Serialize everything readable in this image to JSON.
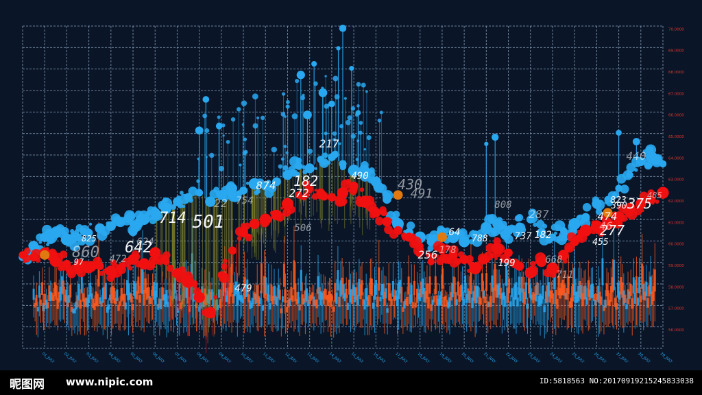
{
  "chart_data": {
    "type": "scatter",
    "title": "",
    "xlabel": "",
    "ylabel": "",
    "x_ticks": [
      "01_JULY",
      "02_JULY",
      "03_JULY",
      "04_JULY",
      "05_JULY",
      "06_JULY",
      "07_JULY",
      "08_JULY",
      "09_JULY",
      "10_JULY",
      "11_JULY",
      "12_JULY",
      "13_JULY",
      "14_JULY",
      "15_JULY",
      "16_JULY",
      "17_JULY",
      "18_JULY",
      "19_JULY",
      "20_JULY",
      "21_JULY",
      "22_JULY",
      "23_JULY",
      "24_JULY",
      "25_JULY",
      "26_JULY",
      "27_JULY",
      "28_JULY",
      "29_JULY"
    ],
    "y_ticks": [
      "70.0000",
      "69.0000",
      "68.0000",
      "67.0000",
      "66.0000",
      "65.0000",
      "64.0000",
      "63.0000",
      "62.0000",
      "61.0000",
      "60.0000",
      "59.0000",
      "58.0000",
      "57.0000",
      "56.0000"
    ],
    "ylim": [
      56,
      70.5
    ],
    "grid": true,
    "colors": {
      "blue": "#29a8f0",
      "red": "#f01010",
      "orange": "#ff5a1e",
      "olive": "#8a8a2a",
      "axis_label": "#e0352a",
      "tick_x": "#29a8f0",
      "grid": "#8fa4c0"
    },
    "series": [
      {
        "x": [
          0,
          0.5,
          1,
          1.5,
          2,
          2.5,
          3,
          3.5,
          4,
          4.5,
          5,
          5.5,
          6,
          6.5,
          7,
          7.5,
          8,
          8.5,
          9,
          9.5,
          10,
          10.5,
          11,
          11.5,
          12,
          12.5,
          13,
          13.5,
          14,
          14.5,
          15,
          15.5,
          16,
          16.5,
          17,
          17.5,
          18,
          18.5,
          19,
          19.5,
          20,
          20.5,
          21,
          21.5,
          22,
          22.5,
          23,
          23.5,
          24,
          24.5,
          25,
          25.5,
          26,
          26.5,
          27,
          27.5,
          28,
          28.5,
          29
        ],
        "values": [
          60.1,
          60.6,
          61.0,
          61.2,
          60.9,
          61.0,
          61.2,
          61.4,
          61.5,
          61.7,
          61.6,
          61.8,
          62.1,
          62.3,
          62.6,
          62.8,
          63.0,
          62.6,
          62.9,
          63.2,
          63.1,
          63.4,
          63.3,
          63.5,
          63.8,
          64.2,
          64.1,
          64.5,
          64.6,
          64.3,
          64.0,
          63.9,
          63.5,
          62.7,
          61.6,
          61.2,
          61.0,
          60.8,
          61.2,
          61.0,
          60.8,
          61.1,
          61.4,
          61.6,
          61.3,
          61.5,
          61.8,
          61.2,
          61.0,
          61.3,
          61.6,
          61.9,
          62.5,
          62.7,
          63.2,
          63.8,
          64.4,
          64.6,
          64.3
        ]
      },
      {
        "x": [
          0,
          0.5,
          1,
          1.5,
          2,
          2.5,
          3,
          3.5,
          4,
          4.5,
          5,
          5.5,
          6,
          6.5,
          7,
          7.5,
          8,
          8.5,
          9,
          9.5,
          10,
          10.5,
          11,
          11.5,
          12,
          12.5,
          13,
          13.5,
          14,
          14.5,
          15,
          15.5,
          16,
          16.5,
          17,
          17.5,
          18,
          18.5,
          19,
          19.5,
          20,
          20.5,
          21,
          21.5,
          22,
          22.5,
          23,
          23.5,
          24,
          24.5,
          25,
          25.5,
          26,
          26.5,
          27,
          27.5,
          28,
          28.5,
          29
        ],
        "values": [
          60.2,
          60.1,
          60.3,
          59.9,
          59.8,
          59.7,
          59.6,
          59.7,
          59.5,
          59.7,
          60.0,
          59.8,
          60.3,
          59.9,
          59.4,
          59.0,
          58.3,
          57.6,
          59.3,
          60.4,
          61.2,
          61.6,
          61.8,
          62.0,
          62.5,
          62.9,
          63.2,
          63.0,
          62.8,
          63.0,
          63.3,
          62.6,
          62.1,
          61.7,
          61.3,
          61.0,
          60.6,
          59.9,
          60.4,
          60.2,
          60.0,
          59.6,
          60.0,
          60.5,
          60.3,
          59.7,
          59.4,
          59.9,
          59.6,
          60.2,
          60.8,
          61.3,
          61.5,
          61.6,
          61.9,
          62.3,
          62.5,
          62.7,
          63.0
        ]
      }
    ],
    "annotations": [
      "825",
      "860",
      "97",
      "472",
      "642",
      "624",
      "714",
      "501",
      "22",
      "754",
      "874",
      "182",
      "272",
      "506",
      "479",
      "217",
      "490",
      "430",
      "491",
      "256",
      "64",
      "178",
      "788",
      "808",
      "199",
      "287",
      "737",
      "182",
      "668",
      "711",
      "455",
      "277",
      "474",
      "46",
      "823",
      "390",
      "375",
      "440",
      "485"
    ]
  },
  "watermark": {
    "logo": "昵图网",
    "url": "www.nipic.com",
    "id_text": "ID:5818563 NO:20170919215245833038"
  }
}
